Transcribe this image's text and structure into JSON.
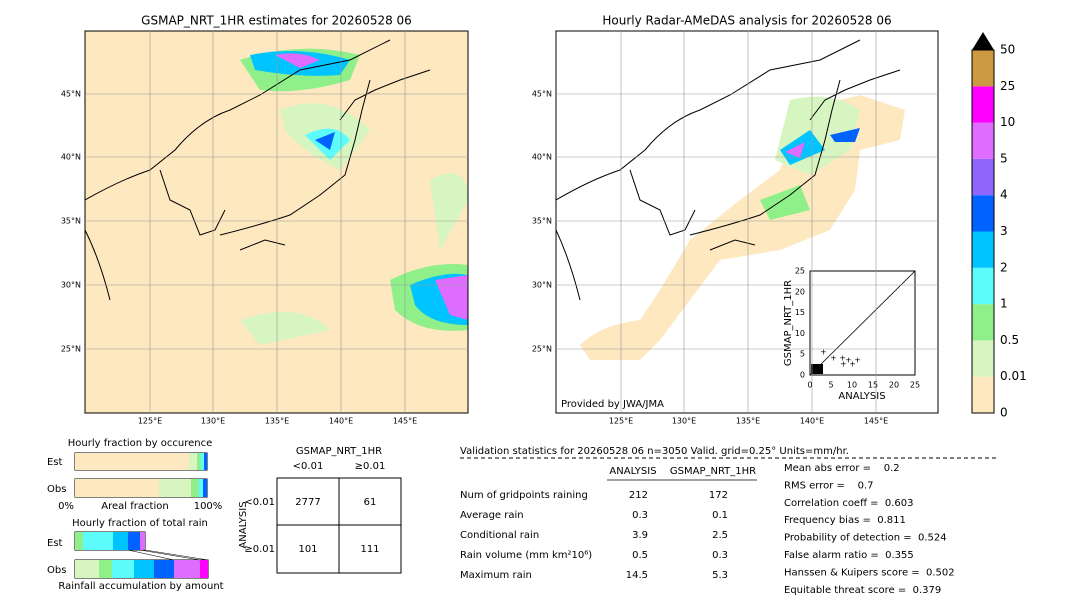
{
  "map_left": {
    "title": "GSMAP_NRT_1HR estimates for 20260528 06",
    "lat_labels": [
      "45°N",
      "40°N",
      "35°N",
      "30°N",
      "25°N"
    ],
    "lon_labels": [
      "125°E",
      "130°E",
      "135°E",
      "140°E",
      "145°E"
    ]
  },
  "map_right": {
    "title": "Hourly Radar-AMeDAS analysis for 20260528 06",
    "lat_labels": [
      "45°N",
      "40°N",
      "35°N",
      "30°N",
      "25°N"
    ],
    "lon_labels": [
      "125°E",
      "130°E",
      "135°E",
      "140°E",
      "145°E"
    ],
    "credit": "Provided by JWA/JMA"
  },
  "scatter": {
    "xlabel": "ANALYSIS",
    "ylabel": "GSMAP_NRT_1HR",
    "ticks": [
      "0",
      "5",
      "10",
      "15",
      "20",
      "25"
    ]
  },
  "colorbar": {
    "levels": [
      "0",
      "0.01",
      "0.5",
      "1",
      "2",
      "3",
      "4",
      "5",
      "10",
      "25",
      "50"
    ],
    "colors": [
      "#fde8c0",
      "#d6f5c0",
      "#8ff08a",
      "#5cfcfc",
      "#00c4ff",
      "#0062ff",
      "#9066ff",
      "#de6cff",
      "#ff00ff",
      "#cc9a40"
    ]
  },
  "occurrence": {
    "title": "Hourly fraction by occurence",
    "rows": [
      "Est",
      "Obs"
    ],
    "x_left": "0%",
    "x_mid": "Areal fraction",
    "x_right": "100%"
  },
  "amount": {
    "title": "Hourly fraction of total rain",
    "rows": [
      "Est",
      "Obs"
    ],
    "xlabel": "Rainfall accumulation by amount"
  },
  "contingency": {
    "title": "GSMAP_NRT_1HR",
    "cols": [
      "<0.01",
      "≥0.01"
    ],
    "ylabel": "ANALYSIS",
    "rows": [
      "<0.01",
      "≥0.01"
    ],
    "cells": [
      [
        "2777",
        "61"
      ],
      [
        "101",
        "111"
      ]
    ]
  },
  "validation": {
    "header": "Validation statistics for 20260528 06  n=3050 Valid. grid=0.25° Units=mm/hr.",
    "columns": [
      "ANALYSIS",
      "GSMAP_NRT_1HR"
    ],
    "rows": [
      {
        "label": "Num of gridpoints raining",
        "values": [
          "212",
          "172"
        ]
      },
      {
        "label": "Average rain",
        "values": [
          "0.3",
          "0.1"
        ]
      },
      {
        "label": "Conditional rain",
        "values": [
          "3.9",
          "2.5"
        ]
      },
      {
        "label": "Rain volume (mm km²10⁶)",
        "values": [
          "0.5",
          "0.3"
        ]
      },
      {
        "label": "Maximum rain",
        "values": [
          "14.5",
          "5.3"
        ]
      }
    ],
    "scores": [
      "Mean abs error =    0.2",
      "RMS error =    0.7",
      "Correlation coeff =  0.603",
      "Frequency bias =  0.811",
      "Probability of detection =  0.524",
      "False alarm ratio =  0.355",
      "Hanssen & Kuipers score =  0.502",
      "Equitable threat score =  0.379"
    ]
  }
}
